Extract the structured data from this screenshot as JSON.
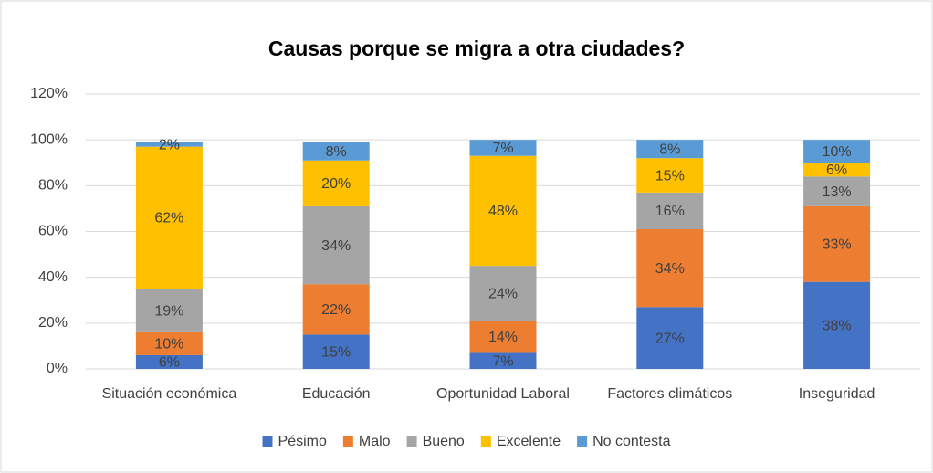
{
  "chart_data": {
    "type": "stacked_bar",
    "title": "Causas porque se migra a otra ciudades?",
    "categories": [
      "Situación económica",
      "Educación",
      "Oportunidad Laboral",
      "Factores climáticos",
      "Inseguridad"
    ],
    "series": [
      {
        "name": "Pésimo",
        "color": "#4472c4",
        "values": [
          6,
          15,
          7,
          27,
          38
        ],
        "value_labels": [
          "6%",
          "15%",
          "7%",
          "27%",
          "38%"
        ]
      },
      {
        "name": "Malo",
        "color": "#ed7d31",
        "values": [
          10,
          22,
          14,
          34,
          33
        ],
        "value_labels": [
          "10%",
          "22%",
          "14%",
          "34%",
          "33%"
        ]
      },
      {
        "name": "Bueno",
        "color": "#a5a5a5",
        "values": [
          19,
          34,
          24,
          16,
          13
        ],
        "value_labels": [
          "19%",
          "34%",
          "24%",
          "16%",
          "13%"
        ]
      },
      {
        "name": "Excelente",
        "color": "#ffc000",
        "values": [
          62,
          20,
          48,
          15,
          6
        ],
        "value_labels": [
          "62%",
          "20%",
          "48%",
          "15%",
          "6%"
        ]
      },
      {
        "name": "No contesta",
        "color": "#5b9bd5",
        "values": [
          2,
          8,
          7,
          8,
          10
        ],
        "value_labels": [
          "2%",
          "8%",
          "7%",
          "8%",
          "10%"
        ]
      }
    ],
    "ylim": [
      0,
      120
    ],
    "yticks": [
      {
        "value": 0,
        "label": "0%"
      },
      {
        "value": 20,
        "label": "20%"
      },
      {
        "value": 40,
        "label": "40%"
      },
      {
        "value": 60,
        "label": "60%"
      },
      {
        "value": 80,
        "label": "80%"
      },
      {
        "value": 100,
        "label": "100%"
      },
      {
        "value": 120,
        "label": "120%"
      }
    ],
    "grid": true,
    "legend": "bottom"
  }
}
